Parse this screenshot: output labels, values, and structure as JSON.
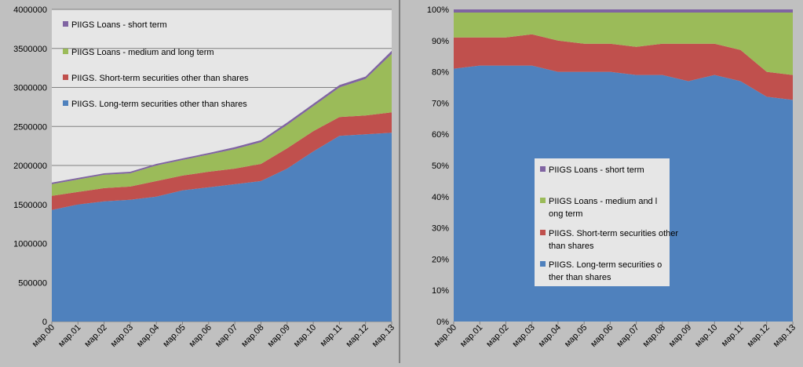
{
  "colors": {
    "long_term": "#4f81bd",
    "short_term": "#c0504d",
    "loans_ml": "#9bbb59",
    "loans_st": "#8064a2"
  },
  "chart_data": [
    {
      "type": "area",
      "stacked": true,
      "title": "",
      "xlabel": "",
      "ylabel": "",
      "ylim": [
        0,
        4000000
      ],
      "yticks": [
        "0",
        "500000",
        "1000000",
        "1500000",
        "2000000",
        "2500000",
        "3000000",
        "3500000",
        "4000000"
      ],
      "categories": [
        "мар.00",
        "мар.01",
        "мар.02",
        "мар.03",
        "мар.04",
        "мар.05",
        "мар.06",
        "мар.07",
        "мар.08",
        "мар.09",
        "мар.10",
        "мар.11",
        "мар.12",
        "мар.13"
      ],
      "legend_position": "top-left",
      "grid": true,
      "series": [
        {
          "name": "PIIGS. Long-term securities other than shares",
          "color_key": "long_term",
          "values": [
            1430000,
            1500000,
            1540000,
            1560000,
            1600000,
            1680000,
            1720000,
            1760000,
            1800000,
            1960000,
            2180000,
            2380000,
            2400000,
            2420000
          ]
        },
        {
          "name": "PIIGS. Short-term securities other than shares",
          "color_key": "short_term",
          "values": [
            180000,
            160000,
            170000,
            170000,
            200000,
            190000,
            200000,
            200000,
            220000,
            260000,
            260000,
            240000,
            240000,
            260000
          ]
        },
        {
          "name": "PIIGS Loans - medium and long term",
          "color_key": "loans_ml",
          "values": [
            150000,
            160000,
            170000,
            170000,
            200000,
            200000,
            220000,
            250000,
            280000,
            300000,
            320000,
            380000,
            470000,
            750000
          ]
        },
        {
          "name": "PIIGS Loans - short term",
          "color_key": "loans_st",
          "values": [
            20000,
            20000,
            20000,
            20000,
            20000,
            20000,
            20000,
            25000,
            25000,
            30000,
            30000,
            30000,
            30000,
            40000
          ]
        }
      ]
    },
    {
      "type": "area",
      "stacked": true,
      "percent": true,
      "title": "",
      "xlabel": "",
      "ylabel": "",
      "ylim": [
        0,
        100
      ],
      "yticks": [
        "0%",
        "10%",
        "20%",
        "30%",
        "40%",
        "50%",
        "60%",
        "70%",
        "80%",
        "90%",
        "100%"
      ],
      "categories": [
        "мар.00",
        "мар.01",
        "мар.02",
        "мар.03",
        "мар.04",
        "мар.05",
        "мар.06",
        "мар.07",
        "мар.08",
        "мар.09",
        "мар.10",
        "мар.11",
        "мар.12",
        "мар.13"
      ],
      "legend_position": "center",
      "grid": false,
      "series": [
        {
          "name": "PIIGS. Long-term securities other than shares",
          "color_key": "long_term",
          "values": [
            81,
            82,
            82,
            82,
            80,
            80,
            80,
            79,
            79,
            77,
            79,
            77,
            72,
            71
          ]
        },
        {
          "name": "PIIGS. Short-term securities other than shares",
          "color_key": "short_term",
          "values": [
            10,
            9,
            9,
            10,
            10,
            9,
            9,
            9,
            10,
            12,
            10,
            10,
            8,
            8
          ]
        },
        {
          "name": "PIIGS Loans - medium and long term",
          "color_key": "loans_ml",
          "values": [
            8,
            8,
            8,
            7,
            9,
            10,
            10,
            11,
            10,
            10,
            10,
            12,
            19,
            20
          ]
        },
        {
          "name": "PIIGS Loans - short term",
          "color_key": "loans_st",
          "values": [
            1,
            1,
            1,
            1,
            1,
            1,
            1,
            1,
            1,
            1,
            1,
            1,
            1,
            1
          ]
        }
      ]
    }
  ]
}
